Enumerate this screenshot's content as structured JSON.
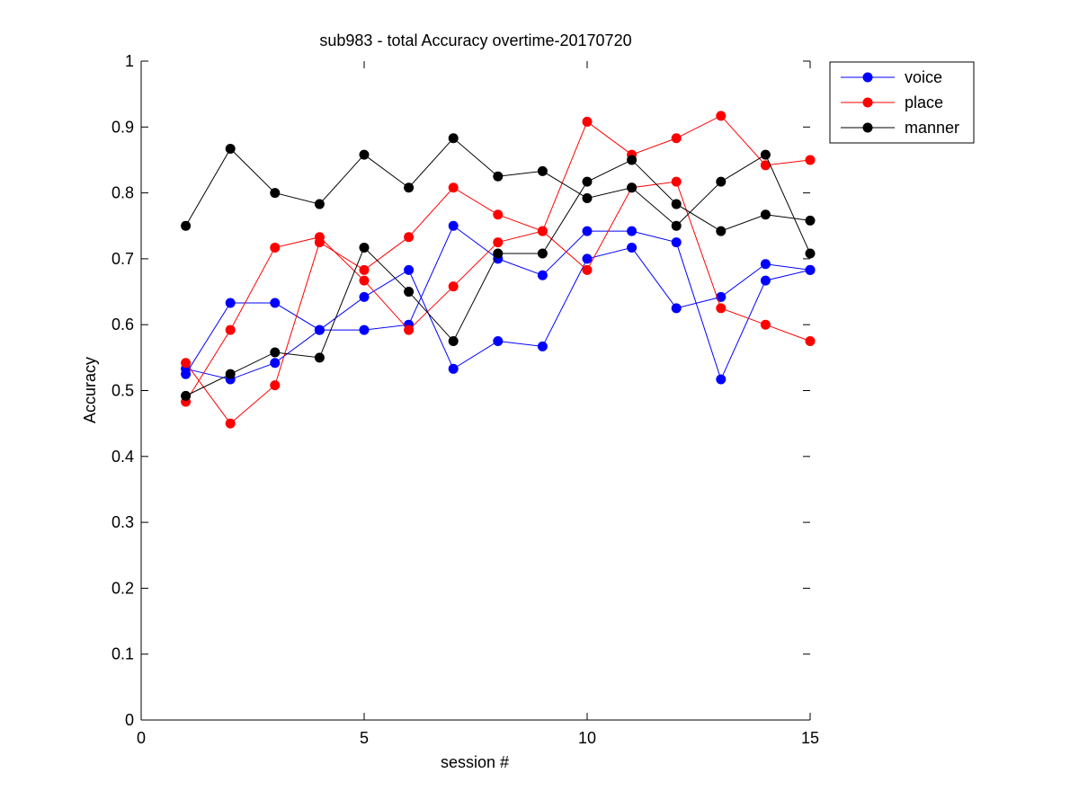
{
  "chart_data": {
    "type": "line",
    "title": "sub983 - total Accuracy overtime-20170720",
    "xlabel": "session #",
    "ylabel": "Accuracy",
    "xlim": [
      0,
      15
    ],
    "ylim": [
      0,
      1
    ],
    "xticks": [
      0,
      5,
      10,
      15
    ],
    "xtick_labels": [
      "0",
      "5",
      "10",
      "15"
    ],
    "yticks": [
      0,
      0.1,
      0.2,
      0.3,
      0.4,
      0.5,
      0.6,
      0.7,
      0.8,
      0.9,
      1
    ],
    "ytick_labels": [
      "0",
      "0.1",
      "0.2",
      "0.3",
      "0.4",
      "0.5",
      "0.6",
      "0.7",
      "0.8",
      "0.9",
      "1"
    ],
    "grid": false,
    "legend_position": "top-right, outside the axes",
    "x": [
      1,
      2,
      3,
      4,
      5,
      6,
      7,
      8,
      9,
      10,
      11,
      12,
      13,
      14,
      15
    ],
    "series": [
      {
        "name": "voice",
        "color": "#0000ff",
        "lines": [
          [
            0.525,
            0.633,
            0.633,
            0.592,
            0.592,
            0.6,
            0.75,
            0.7,
            0.675,
            0.742,
            0.742,
            0.725,
            0.517,
            0.667,
            0.683
          ],
          [
            0.533,
            0.517,
            0.542,
            0.592,
            0.642,
            0.683,
            0.533,
            0.575,
            0.567,
            0.7,
            0.717,
            0.625,
            0.642,
            0.692,
            0.683
          ]
        ]
      },
      {
        "name": "place",
        "color": "#ff0000",
        "lines": [
          [
            0.483,
            0.592,
            0.717,
            0.733,
            0.667,
            0.592,
            0.658,
            0.725,
            0.742,
            0.908,
            0.858,
            0.883,
            0.917,
            0.842,
            0.85
          ],
          [
            0.542,
            0.45,
            0.508,
            0.725,
            0.683,
            0.733,
            0.808,
            0.767,
            0.742,
            0.683,
            0.808,
            0.817,
            0.625,
            0.6,
            0.575
          ]
        ]
      },
      {
        "name": "manner",
        "color": "#000000",
        "lines": [
          [
            0.75,
            0.867,
            0.8,
            0.783,
            0.858,
            0.808,
            0.883,
            0.825,
            0.833,
            0.792,
            0.808,
            0.75,
            0.817,
            0.858,
            0.708
          ],
          [
            0.492,
            0.525,
            0.558,
            0.55,
            0.717,
            0.65,
            0.575,
            0.708,
            0.708,
            0.817,
            0.85,
            0.783,
            0.742,
            0.767,
            0.758
          ]
        ]
      }
    ]
  }
}
